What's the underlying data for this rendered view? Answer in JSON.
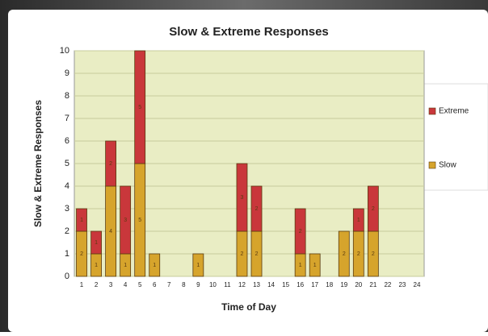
{
  "chart_data": {
    "type": "stacked-bar",
    "title": "Slow & Extreme Responses",
    "x_label": "Time of Day",
    "y_label": "Slow & Extreme Responses",
    "categories": [
      "1",
      "2",
      "3",
      "4",
      "5",
      "6",
      "7",
      "8",
      "9",
      "10",
      "11",
      "12",
      "13",
      "14",
      "15",
      "16",
      "17",
      "18",
      "19",
      "20",
      "21",
      "22",
      "23",
      "24"
    ],
    "series": [
      {
        "name": "Slow",
        "color": "#d6a42c",
        "values": [
          2,
          1,
          4,
          1,
          5,
          1,
          0,
          0,
          1,
          0,
          0,
          2,
          2,
          0,
          0,
          1,
          1,
          0,
          2,
          2,
          2,
          0,
          0,
          0
        ]
      },
      {
        "name": "Extreme",
        "color": "#c9373b",
        "values": [
          1,
          1,
          2,
          3,
          5,
          0,
          0,
          0,
          0,
          0,
          0,
          3,
          2,
          0,
          0,
          2,
          0,
          0,
          0,
          1,
          2,
          0,
          0,
          0
        ]
      }
    ],
    "ylim": [
      0,
      10
    ],
    "yticks": [
      0,
      1,
      2,
      3,
      4,
      5,
      6,
      7,
      8,
      9,
      10
    ],
    "grid": true
  }
}
